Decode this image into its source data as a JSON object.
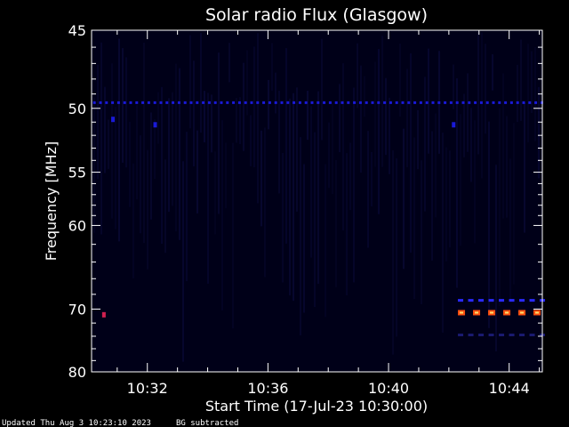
{
  "chart_data": {
    "type": "heatmap",
    "title": "Solar radio Flux (Glasgow)",
    "xlabel": "Start Time (17-Jul-23 10:30:00)",
    "ylabel": "Frequency [MHz]",
    "x_unit": "minutes after 10:30",
    "xlim": [
      0,
      45
    ],
    "x_ticks": [
      {
        "value": 2,
        "label": "10:32"
      },
      {
        "value": 6,
        "label": "10:36"
      },
      {
        "value": 10,
        "label": "10:40"
      },
      {
        "value": 14,
        "label": "10:44"
      }
    ],
    "ylim": [
      45,
      80
    ],
    "y_scale": "reciprocal",
    "y_ticks": [
      {
        "value": 45,
        "label": "45"
      },
      {
        "value": 50,
        "label": "50"
      },
      {
        "value": 55,
        "label": "55"
      },
      {
        "value": 60,
        "label": "60"
      },
      {
        "value": 70,
        "label": "70"
      },
      {
        "value": 80,
        "label": "80"
      }
    ],
    "background_color": "#000018",
    "features": [
      {
        "kind": "dashed-band",
        "freq_mhz": 49.6,
        "t_start": 0.2,
        "t_end": 15.1,
        "color": "#1a1ad8"
      },
      {
        "kind": "dashed-band",
        "freq_mhz": 68.8,
        "t_start": 12.3,
        "t_end": 15.1,
        "color": "#2a2aff"
      },
      {
        "kind": "dashed-band",
        "freq_mhz": 70.5,
        "t_start": 12.3,
        "t_end": 15.1,
        "color": "#ff7a1a"
      },
      {
        "kind": "dashed-band",
        "freq_mhz": 73.8,
        "t_start": 12.3,
        "t_end": 15.1,
        "color": "#1a1a70"
      },
      {
        "kind": "spot",
        "freq_mhz": 70.8,
        "t_start": 0.5,
        "t_end": 0.6,
        "color": "#d02050"
      },
      {
        "kind": "spot",
        "freq_mhz": 50.8,
        "t_start": 0.8,
        "t_end": 0.9,
        "color": "#1a1ad8"
      },
      {
        "kind": "spot",
        "freq_mhz": 51.2,
        "t_start": 2.2,
        "t_end": 2.3,
        "color": "#1a1ad8"
      },
      {
        "kind": "spot",
        "freq_mhz": 51.2,
        "t_start": 12.1,
        "t_end": 12.2,
        "color": "#1a1ad8"
      }
    ]
  },
  "footer": {
    "updated": "Updated Thu Aug  3 10:23:10 2023",
    "note": "BG subtracted"
  }
}
